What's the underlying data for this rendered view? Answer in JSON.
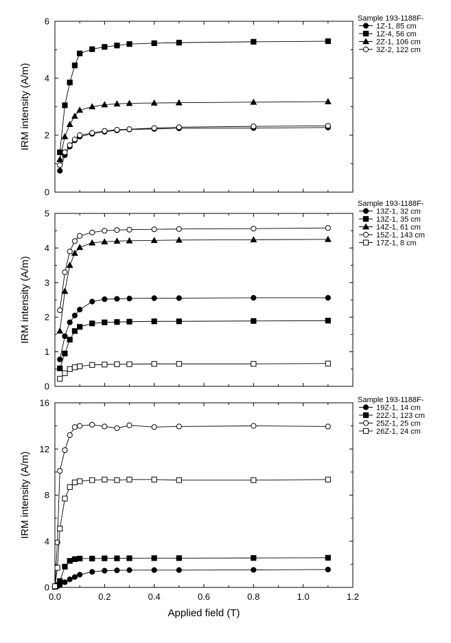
{
  "chart_data": [
    {
      "type": "line",
      "xlabel": "",
      "ylabel": "IRM intensity (A/m)",
      "xlim": [
        0,
        1.2
      ],
      "ylim": [
        0,
        6
      ],
      "yticks": [
        0,
        2,
        4,
        6
      ],
      "xticks": [],
      "grid": false,
      "legend_position": "right",
      "legend_title": "Sample 193-1188F-",
      "series": [
        {
          "name": "1Z-1, 85 cm",
          "marker": "circle-filled",
          "x": [
            0.02,
            0.04,
            0.06,
            0.08,
            0.1,
            0.15,
            0.2,
            0.25,
            0.3,
            0.4,
            0.5,
            0.8,
            1.1
          ],
          "y": [
            0.75,
            1.3,
            1.6,
            1.82,
            1.95,
            2.05,
            2.12,
            2.17,
            2.2,
            2.22,
            2.24,
            2.25,
            2.27
          ]
        },
        {
          "name": "1Z-4, 56 cm",
          "marker": "square-filled",
          "x": [
            0.02,
            0.04,
            0.06,
            0.08,
            0.1,
            0.15,
            0.2,
            0.25,
            0.3,
            0.4,
            0.5,
            0.8,
            1.1
          ],
          "y": [
            1.4,
            3.05,
            3.85,
            4.45,
            4.87,
            5.02,
            5.1,
            5.15,
            5.2,
            5.23,
            5.25,
            5.28,
            5.3
          ]
        },
        {
          "name": "2Z-1, 106 cm",
          "marker": "triangle-filled",
          "x": [
            0.02,
            0.04,
            0.06,
            0.08,
            0.1,
            0.15,
            0.2,
            0.25,
            0.3,
            0.4,
            0.5,
            0.8,
            1.1
          ],
          "y": [
            1.15,
            1.95,
            2.38,
            2.67,
            2.88,
            3.0,
            3.07,
            3.1,
            3.12,
            3.13,
            3.14,
            3.16,
            3.18
          ]
        },
        {
          "name": "3Z-2, 122 cm",
          "marker": "circle-open",
          "x": [
            0.02,
            0.04,
            0.06,
            0.08,
            0.1,
            0.15,
            0.2,
            0.25,
            0.3,
            0.4,
            0.5,
            0.8,
            1.1
          ],
          "y": [
            0.95,
            1.4,
            1.65,
            1.85,
            2.0,
            2.08,
            2.15,
            2.19,
            2.21,
            2.25,
            2.28,
            2.31,
            2.33
          ]
        }
      ]
    },
    {
      "type": "line",
      "xlabel": "",
      "ylabel": "IRM intensity (A/m)",
      "xlim": [
        0,
        1.2
      ],
      "ylim": [
        0,
        5
      ],
      "yticks": [
        0,
        1,
        2,
        3,
        4,
        5
      ],
      "xticks": [],
      "grid": false,
      "legend_position": "right",
      "legend_title": "Sample 193-1188F-",
      "series": [
        {
          "name": "13Z-1, 32 cm",
          "marker": "circle-filled",
          "x": [
            0.02,
            0.04,
            0.06,
            0.08,
            0.1,
            0.15,
            0.2,
            0.25,
            0.3,
            0.4,
            0.5,
            0.8,
            1.1
          ],
          "y": [
            0.78,
            1.45,
            1.85,
            2.05,
            2.22,
            2.45,
            2.52,
            2.53,
            2.54,
            2.55,
            2.55,
            2.56,
            2.56
          ]
        },
        {
          "name": "13Z-1, 35 cm",
          "marker": "square-filled",
          "x": [
            0.02,
            0.04,
            0.06,
            0.08,
            0.1,
            0.15,
            0.2,
            0.25,
            0.3,
            0.4,
            0.5,
            0.8,
            1.1
          ],
          "y": [
            0.52,
            0.95,
            1.35,
            1.6,
            1.72,
            1.82,
            1.85,
            1.86,
            1.87,
            1.88,
            1.88,
            1.89,
            1.9
          ]
        },
        {
          "name": "14Z-1, 61 cm",
          "marker": "triangle-filled",
          "x": [
            0.02,
            0.04,
            0.06,
            0.08,
            0.1,
            0.15,
            0.2,
            0.25,
            0.3,
            0.4,
            0.5,
            0.8,
            1.1
          ],
          "y": [
            1.6,
            2.75,
            3.5,
            3.85,
            4.02,
            4.15,
            4.18,
            4.2,
            4.21,
            4.22,
            4.23,
            4.24,
            4.25
          ]
        },
        {
          "name": "15Z-1, 143 cm",
          "marker": "circle-open",
          "x": [
            0.02,
            0.04,
            0.06,
            0.08,
            0.1,
            0.15,
            0.2,
            0.25,
            0.3,
            0.4,
            0.5,
            0.8,
            1.1
          ],
          "y": [
            2.2,
            3.3,
            3.9,
            4.2,
            4.35,
            4.45,
            4.5,
            4.52,
            4.53,
            4.54,
            4.55,
            4.56,
            4.58
          ]
        },
        {
          "name": "17Z-1, 8 cm",
          "marker": "square-open",
          "x": [
            0.02,
            0.04,
            0.06,
            0.08,
            0.1,
            0.15,
            0.2,
            0.25,
            0.3,
            0.4,
            0.5,
            0.8,
            1.1
          ],
          "y": [
            0.22,
            0.38,
            0.5,
            0.55,
            0.58,
            0.62,
            0.63,
            0.64,
            0.64,
            0.65,
            0.65,
            0.65,
            0.66
          ]
        }
      ]
    },
    {
      "type": "line",
      "xlabel": "Applied field (T)",
      "ylabel": "IRM intensity (A/m)",
      "xlim": [
        0,
        1.2
      ],
      "ylim": [
        0,
        16
      ],
      "yticks": [
        0,
        4,
        8,
        12,
        16
      ],
      "xticks": [
        0.0,
        0.2,
        0.4,
        0.6,
        0.8,
        1.0,
        1.2
      ],
      "xtick_labels": [
        "0.0",
        "0.2",
        "0.4",
        "0.6",
        "0.8",
        "1.0",
        "1.2"
      ],
      "grid": false,
      "legend_position": "right",
      "legend_title": "Sample 193-1188F-",
      "series": [
        {
          "name": "19Z-1, 14 cm",
          "marker": "circle-filled",
          "x": [
            0.0,
            0.01,
            0.02,
            0.04,
            0.06,
            0.08,
            0.1,
            0.15,
            0.2,
            0.25,
            0.3,
            0.4,
            0.5,
            0.8,
            1.1
          ],
          "y": [
            0.05,
            0.1,
            0.2,
            0.45,
            0.7,
            0.9,
            1.1,
            1.35,
            1.45,
            1.48,
            1.5,
            1.5,
            1.5,
            1.52,
            1.55
          ]
        },
        {
          "name": "22Z-1, 123 cm",
          "marker": "square-filled",
          "x": [
            0.0,
            0.01,
            0.02,
            0.04,
            0.06,
            0.08,
            0.1,
            0.15,
            0.2,
            0.25,
            0.3,
            0.4,
            0.5,
            0.8,
            1.1
          ],
          "y": [
            0.05,
            0.2,
            0.55,
            1.8,
            2.3,
            2.45,
            2.5,
            2.5,
            2.52,
            2.52,
            2.53,
            2.54,
            2.54,
            2.55,
            2.57
          ]
        },
        {
          "name": "25Z-1, 25 cm",
          "marker": "circle-open",
          "x": [
            0.0,
            0.01,
            0.02,
            0.04,
            0.06,
            0.08,
            0.1,
            0.15,
            0.2,
            0.25,
            0.3,
            0.4,
            0.5,
            0.8,
            1.1
          ],
          "y": [
            0.1,
            3.9,
            10.1,
            11.9,
            13.2,
            13.9,
            14.0,
            14.1,
            13.95,
            13.8,
            14.05,
            13.9,
            13.95,
            14.0,
            13.95
          ]
        },
        {
          "name": "26Z-1, 24 cm",
          "marker": "square-open",
          "x": [
            0.0,
            0.01,
            0.02,
            0.04,
            0.06,
            0.08,
            0.1,
            0.15,
            0.2,
            0.25,
            0.3,
            0.4,
            0.5,
            0.8,
            1.1
          ],
          "y": [
            0.1,
            1.7,
            5.1,
            7.7,
            8.7,
            9.1,
            9.2,
            9.3,
            9.35,
            9.3,
            9.35,
            9.35,
            9.3,
            9.3,
            9.35
          ]
        }
      ]
    }
  ]
}
